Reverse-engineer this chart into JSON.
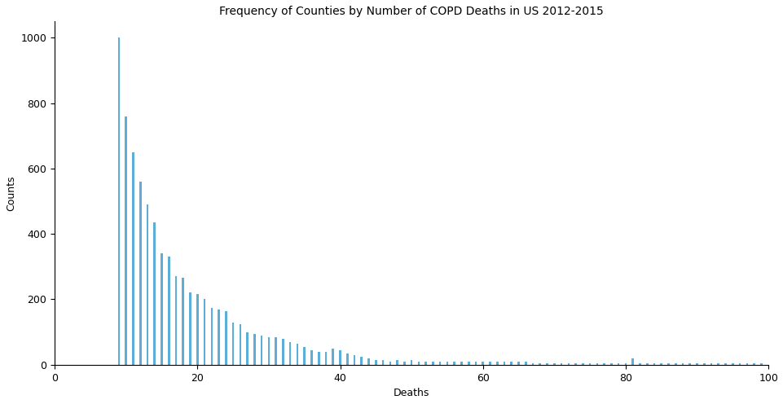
{
  "title": "Frequency of Counties by Number of COPD Deaths in US 2012-2015",
  "xlabel": "Deaths",
  "ylabel": "Counts",
  "xlim": [
    0,
    100
  ],
  "ylim": [
    0,
    1050
  ],
  "bar_color": "#5bafd6",
  "background_color": "#ffffff",
  "bar_data": {
    "9": 1000,
    "10": 760,
    "11": 650,
    "12": 560,
    "13": 490,
    "14": 435,
    "15": 340,
    "16": 330,
    "17": 270,
    "18": 265,
    "19": 220,
    "20": 215,
    "21": 200,
    "22": 175,
    "23": 170,
    "24": 165,
    "25": 130,
    "26": 125,
    "27": 100,
    "28": 95,
    "29": 90,
    "30": 85,
    "31": 85,
    "32": 80,
    "33": 70,
    "34": 65,
    "35": 55,
    "36": 45,
    "37": 40,
    "38": 40,
    "39": 50,
    "40": 45,
    "41": 35,
    "42": 30,
    "43": 25,
    "44": 20,
    "45": 15,
    "46": 15,
    "47": 10,
    "48": 15,
    "49": 10,
    "50": 15,
    "51": 10,
    "52": 10,
    "53": 10,
    "54": 10,
    "55": 10,
    "56": 10,
    "57": 10,
    "58": 10,
    "59": 10,
    "60": 10,
    "61": 10,
    "62": 10,
    "63": 10,
    "64": 10,
    "65": 10,
    "66": 10,
    "67": 5,
    "68": 5,
    "69": 5,
    "70": 5,
    "71": 5,
    "72": 5,
    "73": 5,
    "74": 5,
    "75": 5,
    "76": 5,
    "77": 5,
    "78": 5,
    "79": 5,
    "80": 5,
    "81": 20,
    "82": 5,
    "83": 5,
    "84": 5,
    "85": 5,
    "86": 5,
    "87": 5,
    "88": 5,
    "89": 5,
    "90": 5,
    "91": 5,
    "92": 5,
    "93": 5,
    "94": 5,
    "95": 5,
    "96": 5,
    "97": 5,
    "98": 5,
    "99": 5
  },
  "xticks": [
    0,
    20,
    40,
    60,
    80,
    100
  ],
  "yticks": [
    0,
    200,
    400,
    600,
    800,
    1000
  ],
  "title_fontsize": 10,
  "axis_fontsize": 9,
  "tick_fontsize": 9
}
